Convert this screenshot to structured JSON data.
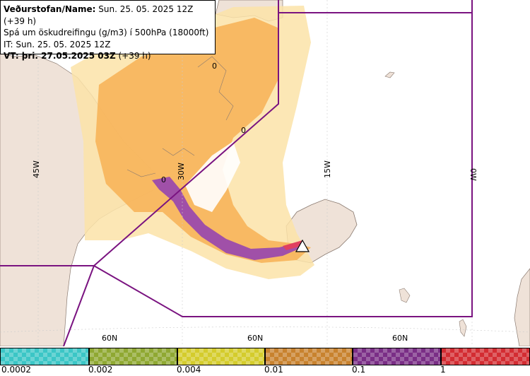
{
  "header": {
    "line1_bold": "Veðurstofan/Name:",
    "line1_rest": " Sun. 25. 05. 2025 12Z (+39 h)",
    "line2": "Spá um öskudreifingu (g/m3) í 500hPa (18000ft)",
    "line3": "IT: Sun. 25. 05. 2025 12Z",
    "line4_bold": "VT: þri. 27.05.2025 03Z",
    "line4_rest": " (+39 h)"
  },
  "map": {
    "longitude_labels": [
      "45W",
      "30W",
      "15W",
      "0W"
    ],
    "latitude_labels": [
      "60N",
      "60N",
      "60N"
    ],
    "contour_labels": [
      "0",
      "0",
      "0"
    ],
    "colors": {
      "sea": "#ffffff",
      "land": "#efe2d8",
      "ash_low": "#fbe3a8",
      "ash_mid": "#f7b45a",
      "ash_high": "#a050a8",
      "ash_peak": "#e04060",
      "boundary": "#7a1380"
    }
  },
  "legend": {
    "tick_labels": [
      "0.0002",
      "0.002",
      "0.004",
      "0.01",
      "0.1",
      "1"
    ],
    "colors": [
      "#3bc6c6",
      "#8fa832",
      "#d4cc2c",
      "#c8822e",
      "#7a2e86",
      "#d32c32"
    ]
  }
}
